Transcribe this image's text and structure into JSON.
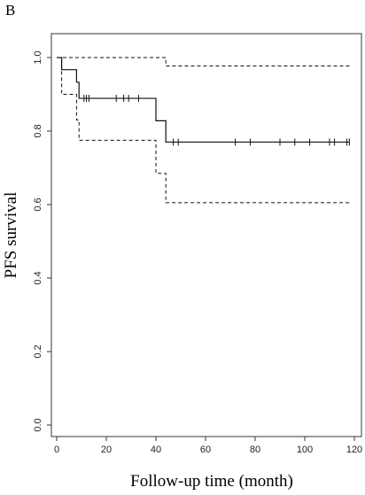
{
  "panel_label": "B",
  "chart_data": {
    "type": "line",
    "title": "",
    "xlabel": "Follow-up time (month)",
    "ylabel": "PFS survival",
    "xlim": [
      0,
      120
    ],
    "ylim": [
      0,
      1
    ],
    "x_ticks": [
      "0",
      "20",
      "40",
      "60",
      "80",
      "100",
      "120"
    ],
    "y_ticks": [
      "0.0",
      "0.2",
      "0.4",
      "0.6",
      "0.8",
      "1.0"
    ],
    "grid": false,
    "legend": "none",
    "series": [
      {
        "role": "estimate",
        "style": "solid",
        "steps": [
          [
            0,
            1.0
          ],
          [
            2,
            0.967
          ],
          [
            8,
            0.933
          ],
          [
            9,
            0.889
          ],
          [
            40,
            0.828
          ],
          [
            44,
            0.77
          ],
          [
            118,
            0.77
          ]
        ],
        "censor_marks": [
          [
            11,
            0.889
          ],
          [
            12,
            0.889
          ],
          [
            13,
            0.889
          ],
          [
            24,
            0.889
          ],
          [
            27,
            0.889
          ],
          [
            29,
            0.889
          ],
          [
            33,
            0.889
          ],
          [
            47,
            0.77
          ],
          [
            49,
            0.77
          ],
          [
            72,
            0.77
          ],
          [
            78,
            0.77
          ],
          [
            90,
            0.77
          ],
          [
            96,
            0.77
          ],
          [
            102,
            0.77
          ],
          [
            110,
            0.77
          ],
          [
            112,
            0.77
          ],
          [
            117,
            0.77
          ],
          [
            118,
            0.77
          ]
        ]
      },
      {
        "role": "upper-bound",
        "style": "dashed",
        "steps": [
          [
            0,
            1.0
          ],
          [
            44,
            0.977
          ],
          [
            118,
            0.977
          ]
        ]
      },
      {
        "role": "lower-bound",
        "style": "dashed",
        "steps": [
          [
            0,
            1.0
          ],
          [
            2,
            0.9
          ],
          [
            8,
            0.83
          ],
          [
            9,
            0.775
          ],
          [
            40,
            0.685
          ],
          [
            44,
            0.605
          ],
          [
            118,
            0.605
          ]
        ]
      }
    ]
  }
}
